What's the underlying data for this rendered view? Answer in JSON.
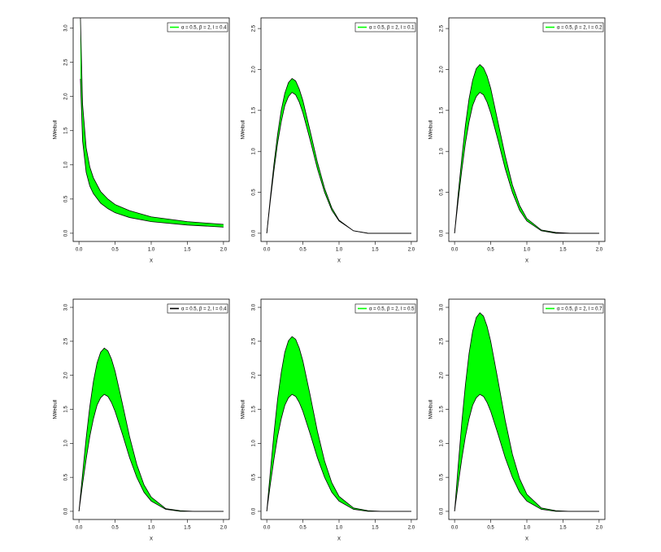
{
  "chart_data": [
    {
      "type": "band",
      "x_label": "X",
      "y_label": "NWeibull",
      "x": [
        0.02,
        0.05,
        0.1,
        0.15,
        0.2,
        0.3,
        0.4,
        0.5,
        0.7,
        1.0,
        1.5,
        2.0
      ],
      "series": [
        {
          "name": "α = 0.5, β = 2, l = 0.4",
          "color": "#00ff00",
          "legend_color": "#00ff00",
          "lower": [
            2.26,
            1.35,
            0.89,
            0.69,
            0.58,
            0.44,
            0.36,
            0.3,
            0.23,
            0.17,
            0.12,
            0.09
          ],
          "upper": [
            3.17,
            1.89,
            1.25,
            0.97,
            0.81,
            0.61,
            0.5,
            0.42,
            0.33,
            0.24,
            0.17,
            0.13
          ]
        }
      ],
      "xlim": [
        -0.08,
        2.08
      ],
      "ylim": [
        -0.12,
        3.15
      ],
      "xticks": [
        {
          "value": 0,
          "label": "0.0"
        },
        {
          "value": 0.5,
          "label": "0.5"
        },
        {
          "value": 1,
          "label": "1.0"
        },
        {
          "value": 1.5,
          "label": "1.5"
        },
        {
          "value": 2,
          "label": "2.0"
        }
      ],
      "yticks": [
        {
          "value": 0,
          "label": "0.0"
        },
        {
          "value": 0.5,
          "label": "0.5"
        },
        {
          "value": 1,
          "label": "1.0"
        },
        {
          "value": 1.5,
          "label": "1.5"
        },
        {
          "value": 2,
          "label": "2.0"
        },
        {
          "value": 2.5,
          "label": "2.5"
        },
        {
          "value": 3,
          "label": "3.0"
        }
      ]
    },
    {
      "type": "band",
      "x_label": "X",
      "y_label": "NWeibull",
      "x": [
        0,
        0.05,
        0.1,
        0.15,
        0.2,
        0.25,
        0.3,
        0.35,
        0.4,
        0.45,
        0.5,
        0.6,
        0.7,
        0.8,
        0.9,
        1.0,
        1.2,
        1.4,
        1.6,
        2.0
      ],
      "series": [
        {
          "name": "α = 0.5, β = 2, l = 0.1",
          "color": "#00ff00",
          "legend_color": "#00ff00",
          "lower": [
            0,
            0.4,
            0.77,
            1.1,
            1.36,
            1.56,
            1.67,
            1.72,
            1.69,
            1.6,
            1.47,
            1.14,
            0.79,
            0.5,
            0.28,
            0.15,
            0.03,
            0,
            0,
            0
          ],
          "upper": [
            0,
            0.44,
            0.85,
            1.21,
            1.5,
            1.71,
            1.84,
            1.89,
            1.86,
            1.76,
            1.62,
            1.25,
            0.87,
            0.55,
            0.31,
            0.16,
            0.03,
            0,
            0,
            0
          ]
        }
      ],
      "xlim": [
        -0.08,
        2.08
      ],
      "ylim": [
        -0.1,
        2.63
      ],
      "xticks": [
        {
          "value": 0,
          "label": "0.0"
        },
        {
          "value": 0.5,
          "label": "0.5"
        },
        {
          "value": 1,
          "label": "1.0"
        },
        {
          "value": 1.5,
          "label": "1.5"
        },
        {
          "value": 2,
          "label": "2.0"
        }
      ],
      "yticks": [
        {
          "value": 0,
          "label": "0.0"
        },
        {
          "value": 0.5,
          "label": "0.5"
        },
        {
          "value": 1,
          "label": "1.0"
        },
        {
          "value": 1.5,
          "label": "1.5"
        },
        {
          "value": 2,
          "label": "2.0"
        },
        {
          "value": 2.5,
          "label": "2.5"
        }
      ]
    },
    {
      "type": "band",
      "x_label": "X",
      "y_label": "NWeibull",
      "x": [
        0,
        0.05,
        0.1,
        0.15,
        0.2,
        0.25,
        0.3,
        0.35,
        0.4,
        0.45,
        0.5,
        0.6,
        0.7,
        0.8,
        0.9,
        1.0,
        1.2,
        1.4,
        1.6,
        2.0
      ],
      "series": [
        {
          "name": "α = 0.5, β = 2, l = 0.2",
          "color": "#00ff00",
          "legend_color": "#00ff00",
          "lower": [
            0,
            0.4,
            0.77,
            1.1,
            1.36,
            1.56,
            1.67,
            1.72,
            1.69,
            1.6,
            1.47,
            1.14,
            0.79,
            0.5,
            0.28,
            0.15,
            0.03,
            0,
            0,
            0
          ],
          "upper": [
            0,
            0.48,
            0.92,
            1.32,
            1.64,
            1.87,
            2.01,
            2.06,
            2.02,
            1.92,
            1.77,
            1.36,
            0.95,
            0.59,
            0.34,
            0.18,
            0.04,
            0.01,
            0,
            0
          ]
        }
      ],
      "xlim": [
        -0.08,
        2.08
      ],
      "ylim": [
        -0.1,
        2.63
      ],
      "xticks": [
        {
          "value": 0,
          "label": "0.0"
        },
        {
          "value": 0.5,
          "label": "0.5"
        },
        {
          "value": 1,
          "label": "1.0"
        },
        {
          "value": 1.5,
          "label": "1.5"
        },
        {
          "value": 2,
          "label": "2.0"
        }
      ],
      "yticks": [
        {
          "value": 0,
          "label": "0.0"
        },
        {
          "value": 0.5,
          "label": "0.5"
        },
        {
          "value": 1,
          "label": "1.0"
        },
        {
          "value": 1.5,
          "label": "1.5"
        },
        {
          "value": 2,
          "label": "2.0"
        },
        {
          "value": 2.5,
          "label": "2.5"
        }
      ]
    },
    {
      "type": "band",
      "x_label": "X",
      "y_label": "NWeibull",
      "x": [
        0,
        0.05,
        0.1,
        0.15,
        0.2,
        0.25,
        0.3,
        0.35,
        0.4,
        0.45,
        0.5,
        0.6,
        0.7,
        0.8,
        0.9,
        1.0,
        1.2,
        1.4,
        1.6,
        2.0
      ],
      "series": [
        {
          "name": "α = 0.5, β = 2, l = 0.4",
          "color": "#00ff00",
          "legend_color": "#000000",
          "lower": [
            0,
            0.4,
            0.77,
            1.1,
            1.36,
            1.56,
            1.67,
            1.72,
            1.69,
            1.6,
            1.47,
            1.14,
            0.79,
            0.5,
            0.28,
            0.15,
            0.03,
            0,
            0,
            0
          ],
          "upper": [
            0,
            0.55,
            1.08,
            1.54,
            1.91,
            2.18,
            2.34,
            2.4,
            2.36,
            2.24,
            2.06,
            1.59,
            1.1,
            0.69,
            0.39,
            0.21,
            0.04,
            0.01,
            0,
            0
          ]
        }
      ],
      "xlim": [
        -0.08,
        2.08
      ],
      "ylim": [
        -0.12,
        3.12
      ],
      "xticks": [
        {
          "value": 0,
          "label": "0.0"
        },
        {
          "value": 0.5,
          "label": "0.5"
        },
        {
          "value": 1,
          "label": "1.0"
        },
        {
          "value": 1.5,
          "label": "1.5"
        },
        {
          "value": 2,
          "label": "2.0"
        }
      ],
      "yticks": [
        {
          "value": 0,
          "label": "0.0"
        },
        {
          "value": 0.5,
          "label": "0.5"
        },
        {
          "value": 1,
          "label": "1.0"
        },
        {
          "value": 1.5,
          "label": "1.5"
        },
        {
          "value": 2,
          "label": "2.0"
        },
        {
          "value": 2.5,
          "label": "2.5"
        },
        {
          "value": 3,
          "label": "3.0"
        }
      ]
    },
    {
      "type": "band",
      "x_label": "X",
      "y_label": "NWeibull",
      "x": [
        0,
        0.05,
        0.1,
        0.15,
        0.2,
        0.25,
        0.3,
        0.35,
        0.4,
        0.45,
        0.5,
        0.6,
        0.7,
        0.8,
        0.9,
        1.0,
        1.2,
        1.4,
        1.6,
        2.0
      ],
      "series": [
        {
          "name": "α = 0.5, β = 2, l = 0.5",
          "color": "#00ff00",
          "legend_color": "#00ff00",
          "lower": [
            0,
            0.4,
            0.77,
            1.1,
            1.36,
            1.56,
            1.67,
            1.72,
            1.69,
            1.6,
            1.47,
            1.14,
            0.79,
            0.5,
            0.28,
            0.15,
            0.03,
            0,
            0,
            0
          ],
          "upper": [
            0,
            0.59,
            1.15,
            1.65,
            2.04,
            2.34,
            2.51,
            2.57,
            2.53,
            2.4,
            2.21,
            1.71,
            1.18,
            0.74,
            0.42,
            0.22,
            0.05,
            0.01,
            0,
            0
          ]
        }
      ],
      "xlim": [
        -0.08,
        2.08
      ],
      "ylim": [
        -0.12,
        3.12
      ],
      "xticks": [
        {
          "value": 0,
          "label": "0.0"
        },
        {
          "value": 0.5,
          "label": "0.5"
        },
        {
          "value": 1,
          "label": "1.0"
        },
        {
          "value": 1.5,
          "label": "1.5"
        },
        {
          "value": 2,
          "label": "2.0"
        }
      ],
      "yticks": [
        {
          "value": 0,
          "label": "0.0"
        },
        {
          "value": 0.5,
          "label": "0.5"
        },
        {
          "value": 1,
          "label": "1.0"
        },
        {
          "value": 1.5,
          "label": "1.5"
        },
        {
          "value": 2,
          "label": "2.0"
        },
        {
          "value": 2.5,
          "label": "2.5"
        },
        {
          "value": 3,
          "label": "3.0"
        }
      ]
    },
    {
      "type": "band",
      "x_label": "X",
      "y_label": "NWeibull",
      "x": [
        0,
        0.05,
        0.1,
        0.15,
        0.2,
        0.25,
        0.3,
        0.35,
        0.4,
        0.45,
        0.5,
        0.6,
        0.7,
        0.8,
        0.9,
        1.0,
        1.2,
        1.4,
        1.6,
        2.0
      ],
      "series": [
        {
          "name": "α = 0.5, β = 2, l = 0.7",
          "color": "#00ff00",
          "legend_color": "#00ff00",
          "lower": [
            0,
            0.4,
            0.77,
            1.1,
            1.36,
            1.56,
            1.67,
            1.72,
            1.69,
            1.6,
            1.47,
            1.14,
            0.79,
            0.5,
            0.28,
            0.15,
            0.03,
            0,
            0,
            0
          ],
          "upper": [
            0,
            0.67,
            1.31,
            1.86,
            2.32,
            2.65,
            2.85,
            2.92,
            2.87,
            2.72,
            2.5,
            1.93,
            1.34,
            0.84,
            0.48,
            0.25,
            0.05,
            0.01,
            0,
            0
          ]
        }
      ],
      "xlim": [
        -0.08,
        2.08
      ],
      "ylim": [
        -0.12,
        3.12
      ],
      "xticks": [
        {
          "value": 0,
          "label": "0.0"
        },
        {
          "value": 0.5,
          "label": "0.5"
        },
        {
          "value": 1,
          "label": "1.0"
        },
        {
          "value": 1.5,
          "label": "1.5"
        },
        {
          "value": 2,
          "label": "2.0"
        }
      ],
      "yticks": [
        {
          "value": 0,
          "label": "0.0"
        },
        {
          "value": 0.5,
          "label": "0.5"
        },
        {
          "value": 1,
          "label": "1.0"
        },
        {
          "value": 1.5,
          "label": "1.5"
        },
        {
          "value": 2,
          "label": "2.0"
        },
        {
          "value": 2.5,
          "label": "2.5"
        },
        {
          "value": 3,
          "label": "3.0"
        }
      ]
    }
  ]
}
